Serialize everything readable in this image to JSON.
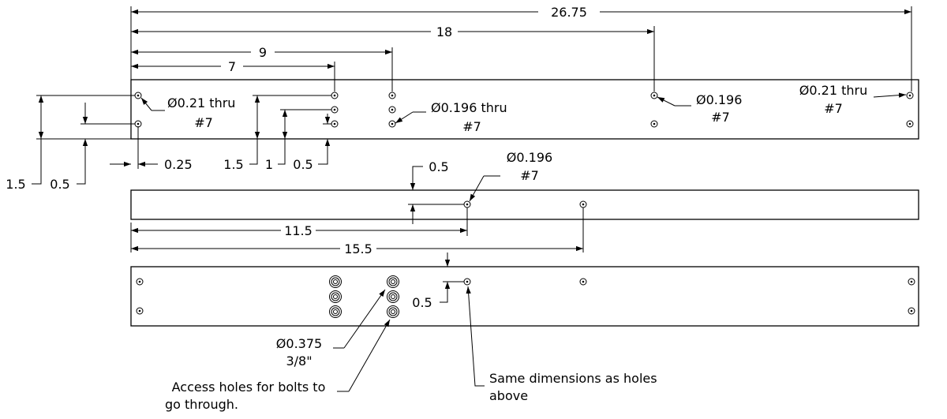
{
  "dimensions": {
    "overall": "26.75",
    "d18": "18",
    "d9": "9",
    "d7": "7",
    "d11_5": "11.5",
    "d15_5": "15.5",
    "v1_5": "1.5",
    "v0_5": "0.5",
    "h0_25": "0.25",
    "v1_5b": "1.5",
    "v1": "1",
    "v0_5b": "0.5",
    "mid_0_5": "0.5",
    "bot_0_5": "0.5"
  },
  "callouts": {
    "c1_line1": "Ø0.21 thru",
    "c1_line2": "#7",
    "c2_line1": "Ø0.196 thru",
    "c2_line2": "#7",
    "c3_line1": "Ø0.196",
    "c3_line2": "#7",
    "c4_line1": "Ø0.21 thru",
    "c4_line2": "#7",
    "c5_line1": "Ø0.196",
    "c5_line2": "#7",
    "c6_line1": "Ø0.375",
    "c6_line2": "3/8\"",
    "c7_line1": "Access holes for bolts to",
    "c7_line2": "go through.",
    "c8_line1": "Same dimensions as holes",
    "c8_line2": "above"
  }
}
